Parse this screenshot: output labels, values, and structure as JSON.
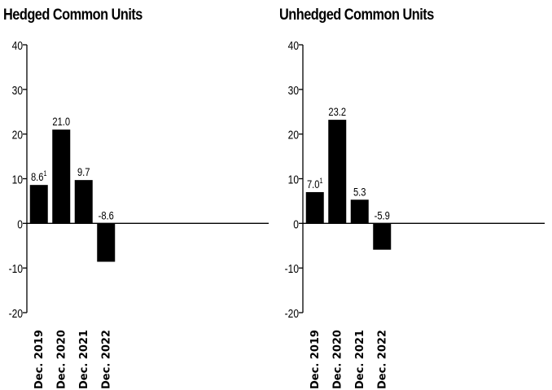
{
  "chart_data": [
    {
      "type": "bar",
      "title": "Hedged Common Units",
      "categories": [
        "Dec. 2019",
        "Dec. 2020",
        "Dec. 2021",
        "Dec. 2022"
      ],
      "values": [
        8.6,
        21.0,
        9.7,
        -8.6
      ],
      "data_labels": [
        "8.6",
        "21.0",
        "9.7",
        "-8.6"
      ],
      "data_label_footnotes": [
        "1",
        "",
        "",
        ""
      ],
      "ylim": [
        -20,
        40
      ],
      "yticks": [
        40,
        30,
        20,
        10,
        0,
        -10,
        -20
      ],
      "grid": false,
      "bar_color": "#000000"
    },
    {
      "type": "bar",
      "title": "Unhedged Common Units",
      "categories": [
        "Dec. 2019",
        "Dec. 2020",
        "Dec. 2021",
        "Dec. 2022"
      ],
      "values": [
        7.0,
        23.2,
        5.3,
        -5.9
      ],
      "data_labels": [
        "7.0",
        "23.2",
        "5.3",
        "-5.9"
      ],
      "data_label_footnotes": [
        "1",
        "",
        "",
        ""
      ],
      "ylim": [
        -20,
        40
      ],
      "yticks": [
        40,
        30,
        20,
        10,
        0,
        -10,
        -20
      ],
      "grid": false,
      "bar_color": "#000000"
    }
  ]
}
